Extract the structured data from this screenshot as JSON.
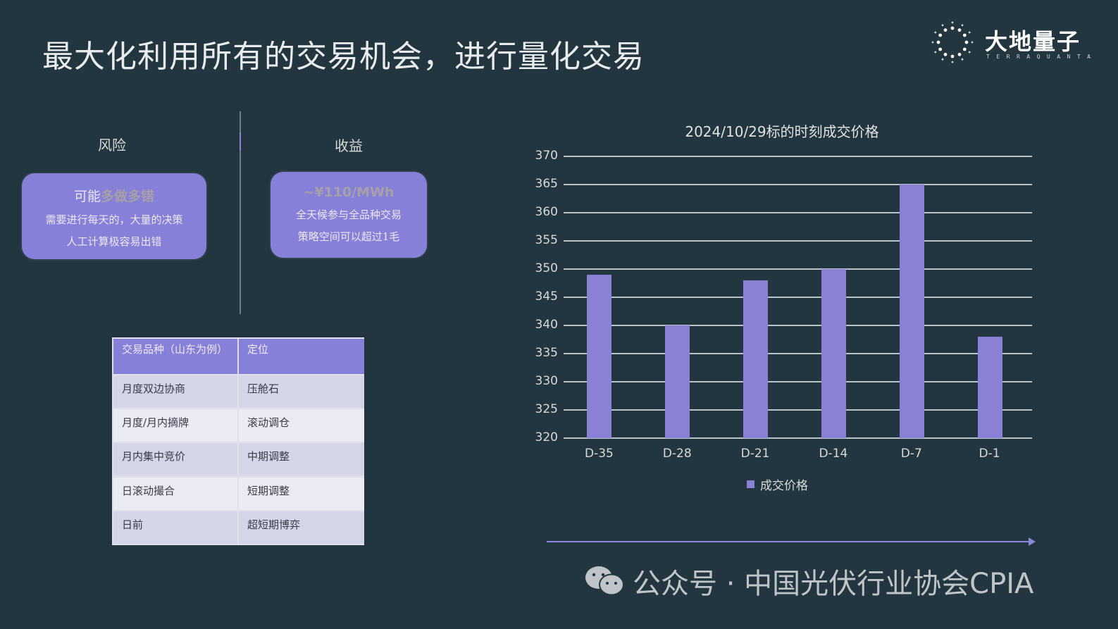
{
  "slide": {
    "title": "最大化利用所有的交易机会，进行量化交易"
  },
  "logo": {
    "name_cn": "大地量子",
    "name_en": "TERRAQUANTA",
    "icon": "dotted-ring-logo-icon"
  },
  "left_panel": {
    "risk": {
      "label": "风险",
      "card": {
        "head_prefix": "可能",
        "head_highlight": "多做多错",
        "line1": "需要进行每天的，大量的决策",
        "line2": "人工计算极容易出错"
      }
    },
    "reward": {
      "label": "收益",
      "card": {
        "head_highlight": "~¥110/MWh",
        "line1": "全天候参与全品种交易",
        "line2": "策略空间可以超过1毛"
      }
    }
  },
  "table": {
    "headers": [
      "交易品种（山东为例）",
      "定位"
    ],
    "rows": [
      [
        "月度双边协商",
        "压舱石"
      ],
      [
        "月度/月内摘牌",
        "滚动调仓"
      ],
      [
        "月内集中竞价",
        "中期调整"
      ],
      [
        "日滚动撮合",
        "短期调整"
      ],
      [
        "日前",
        "超短期博弈"
      ]
    ]
  },
  "chart_data": {
    "type": "bar",
    "title": "2024/10/29标的时刻成交价格",
    "categories": [
      "D-35",
      "D-28",
      "D-21",
      "D-14",
      "D-7",
      "D-1"
    ],
    "series": [
      {
        "name": "成交价格",
        "values": [
          349,
          340,
          348,
          350,
          365,
          338
        ],
        "color": "#8a80d6"
      }
    ],
    "xlabel": "",
    "ylabel": "",
    "ylim": [
      320,
      370
    ],
    "yticks": [
      "370",
      "365",
      "360",
      "355",
      "350",
      "345",
      "340",
      "335",
      "330",
      "325",
      "320"
    ],
    "grid": true,
    "legend_position": "bottom"
  },
  "watermark": {
    "icon": "wechat-icon",
    "text": "公众号 · 中国光伏行业协会CPIA"
  },
  "colors": {
    "background": "#233640",
    "accent": "#8680d8",
    "bar": "#8a80d6"
  }
}
